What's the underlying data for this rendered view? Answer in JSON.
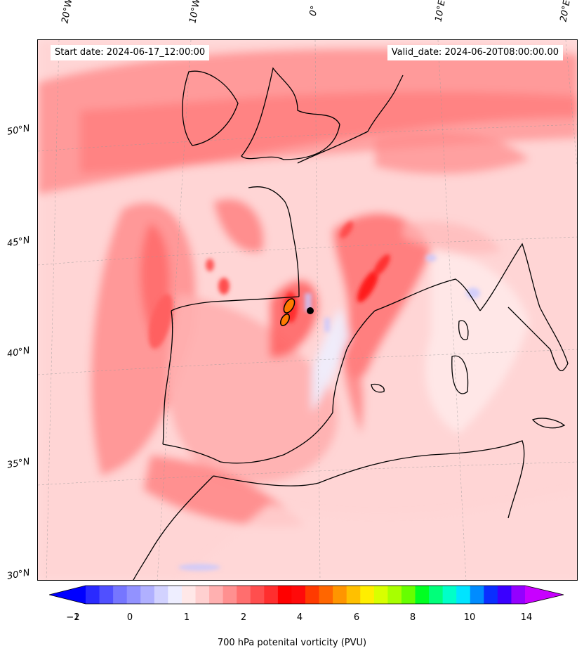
{
  "header": {
    "start_date": "Start date: 2024-06-17_12:00:00",
    "valid_date": "Valid_date: 2024-06-20T08:00:00.00"
  },
  "gridlines": {
    "lon_labels": [
      "20°W",
      "10°W",
      "0°",
      "10°E",
      "20°E"
    ],
    "lat_labels": [
      "50°N",
      "45°N",
      "40°N",
      "35°N",
      "30°N"
    ]
  },
  "colorbar": {
    "label": "700 hPa potenital vorticity (PVU)",
    "tick_labels": [
      "−2",
      "−1",
      "0",
      "1",
      "2",
      "4",
      "6",
      "8",
      "10",
      "14"
    ],
    "colors": [
      "#0000ff",
      "#2a2aff",
      "#5050ff",
      "#7676ff",
      "#9292ff",
      "#b0b0ff",
      "#d2d2ff",
      "#eeeeff",
      "#ffe8e8",
      "#ffd0d0",
      "#ffb0b0",
      "#ff9090",
      "#ff6e6e",
      "#ff4e4e",
      "#ff2e2e",
      "#ff0000",
      "#ff0a0a",
      "#ff3a00",
      "#ff6600",
      "#ff9500",
      "#ffc000",
      "#ffee00",
      "#d8ff00",
      "#a8ff00",
      "#66ff00",
      "#00ff22",
      "#00ff7a",
      "#00ffc8",
      "#00e4ff",
      "#008cff",
      "#0a2eff",
      "#3a00ff",
      "#9400ff",
      "#c800ff"
    ]
  },
  "colors": {
    "land_outline": "#000000",
    "background_pv": "#ffe4e4",
    "max_pv": "#ff0000"
  }
}
